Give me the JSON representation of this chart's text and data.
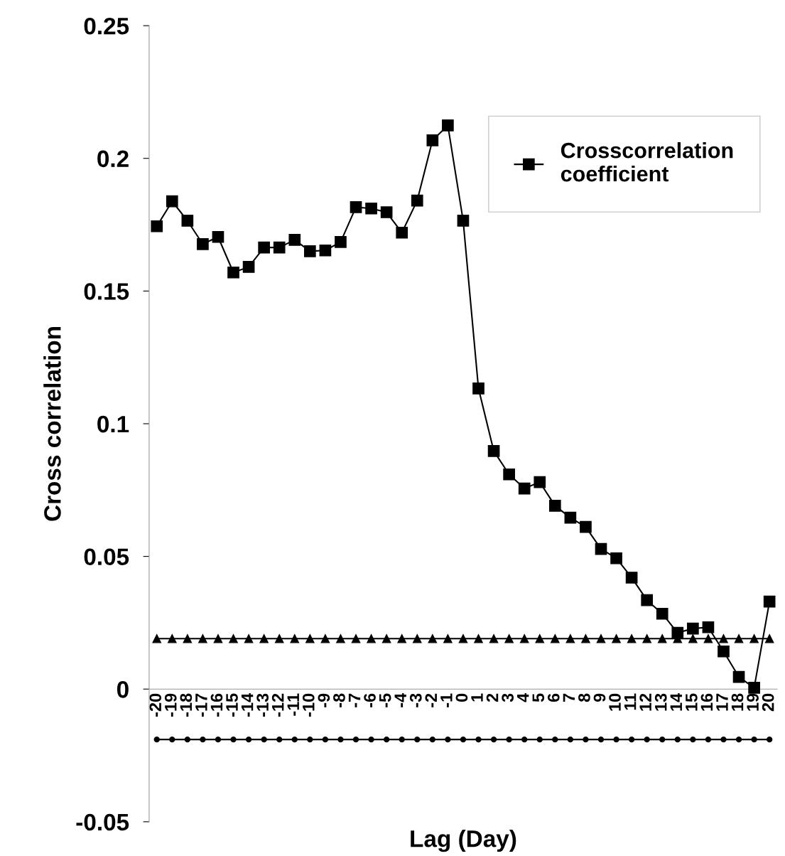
{
  "chart_data": {
    "type": "line",
    "xlabel": "Lag (Day)",
    "ylabel": "Cross correlation",
    "categories": [
      "-20",
      "-19",
      "-18",
      "-17",
      "-16",
      "-15",
      "-14",
      "-13",
      "-12",
      "-11",
      "-10",
      "-9",
      "-8",
      "-7",
      "-6",
      "-5",
      "-4",
      "-3",
      "-2",
      "-1",
      "0",
      "1",
      "2",
      "3",
      "4",
      "5",
      "6",
      "7",
      "8",
      "9",
      "10",
      "11",
      "12",
      "13",
      "14",
      "15",
      "16",
      "17",
      "18",
      "19",
      "20"
    ],
    "series": [
      {
        "name": "Crosscorrelation coefficient",
        "color": "#000000",
        "marker": "square",
        "values": [
          0.1744,
          0.1838,
          0.1765,
          0.1677,
          0.1704,
          0.157,
          0.1591,
          0.1664,
          0.1664,
          0.1693,
          0.165,
          0.1653,
          0.1685,
          0.1816,
          0.1811,
          0.1797,
          0.172,
          0.1841,
          0.2068,
          0.2124,
          0.1765,
          0.1133,
          0.0897,
          0.0809,
          0.0756,
          0.078,
          0.0691,
          0.0646,
          0.0611,
          0.0528,
          0.0493,
          0.042,
          0.0335,
          0.0284,
          0.0212,
          0.0228,
          0.0233,
          0.0142,
          0.0046,
          0.0005,
          0.033
        ]
      },
      {
        "color": "#000000",
        "marker": "triangle",
        "values": [
          0.019,
          0.019,
          0.019,
          0.019,
          0.019,
          0.019,
          0.019,
          0.019,
          0.019,
          0.019,
          0.019,
          0.019,
          0.019,
          0.019,
          0.019,
          0.019,
          0.019,
          0.019,
          0.019,
          0.019,
          0.019,
          0.019,
          0.019,
          0.019,
          0.019,
          0.019,
          0.019,
          0.019,
          0.019,
          0.019,
          0.019,
          0.019,
          0.019,
          0.019,
          0.019,
          0.019,
          0.019,
          0.019,
          0.019,
          0.019,
          0.019
        ]
      },
      {
        "color": "#000000",
        "marker": "circle",
        "values": [
          -0.019,
          -0.019,
          -0.019,
          -0.019,
          -0.019,
          -0.019,
          -0.019,
          -0.019,
          -0.019,
          -0.019,
          -0.019,
          -0.019,
          -0.019,
          -0.019,
          -0.019,
          -0.019,
          -0.019,
          -0.019,
          -0.019,
          -0.019,
          -0.019,
          -0.019,
          -0.019,
          -0.019,
          -0.019,
          -0.019,
          -0.019,
          -0.019,
          -0.019,
          -0.019,
          -0.019,
          -0.019,
          -0.019,
          -0.019,
          -0.019,
          -0.019,
          -0.019,
          -0.019,
          -0.019,
          -0.019,
          -0.019
        ]
      }
    ],
    "ylim": [
      -0.05,
      0.25
    ],
    "yticks": [
      -0.05,
      0,
      0.05,
      0.1,
      0.15,
      0.2,
      0.25
    ],
    "grid": false,
    "legend": "top right",
    "line_style": "solid"
  }
}
